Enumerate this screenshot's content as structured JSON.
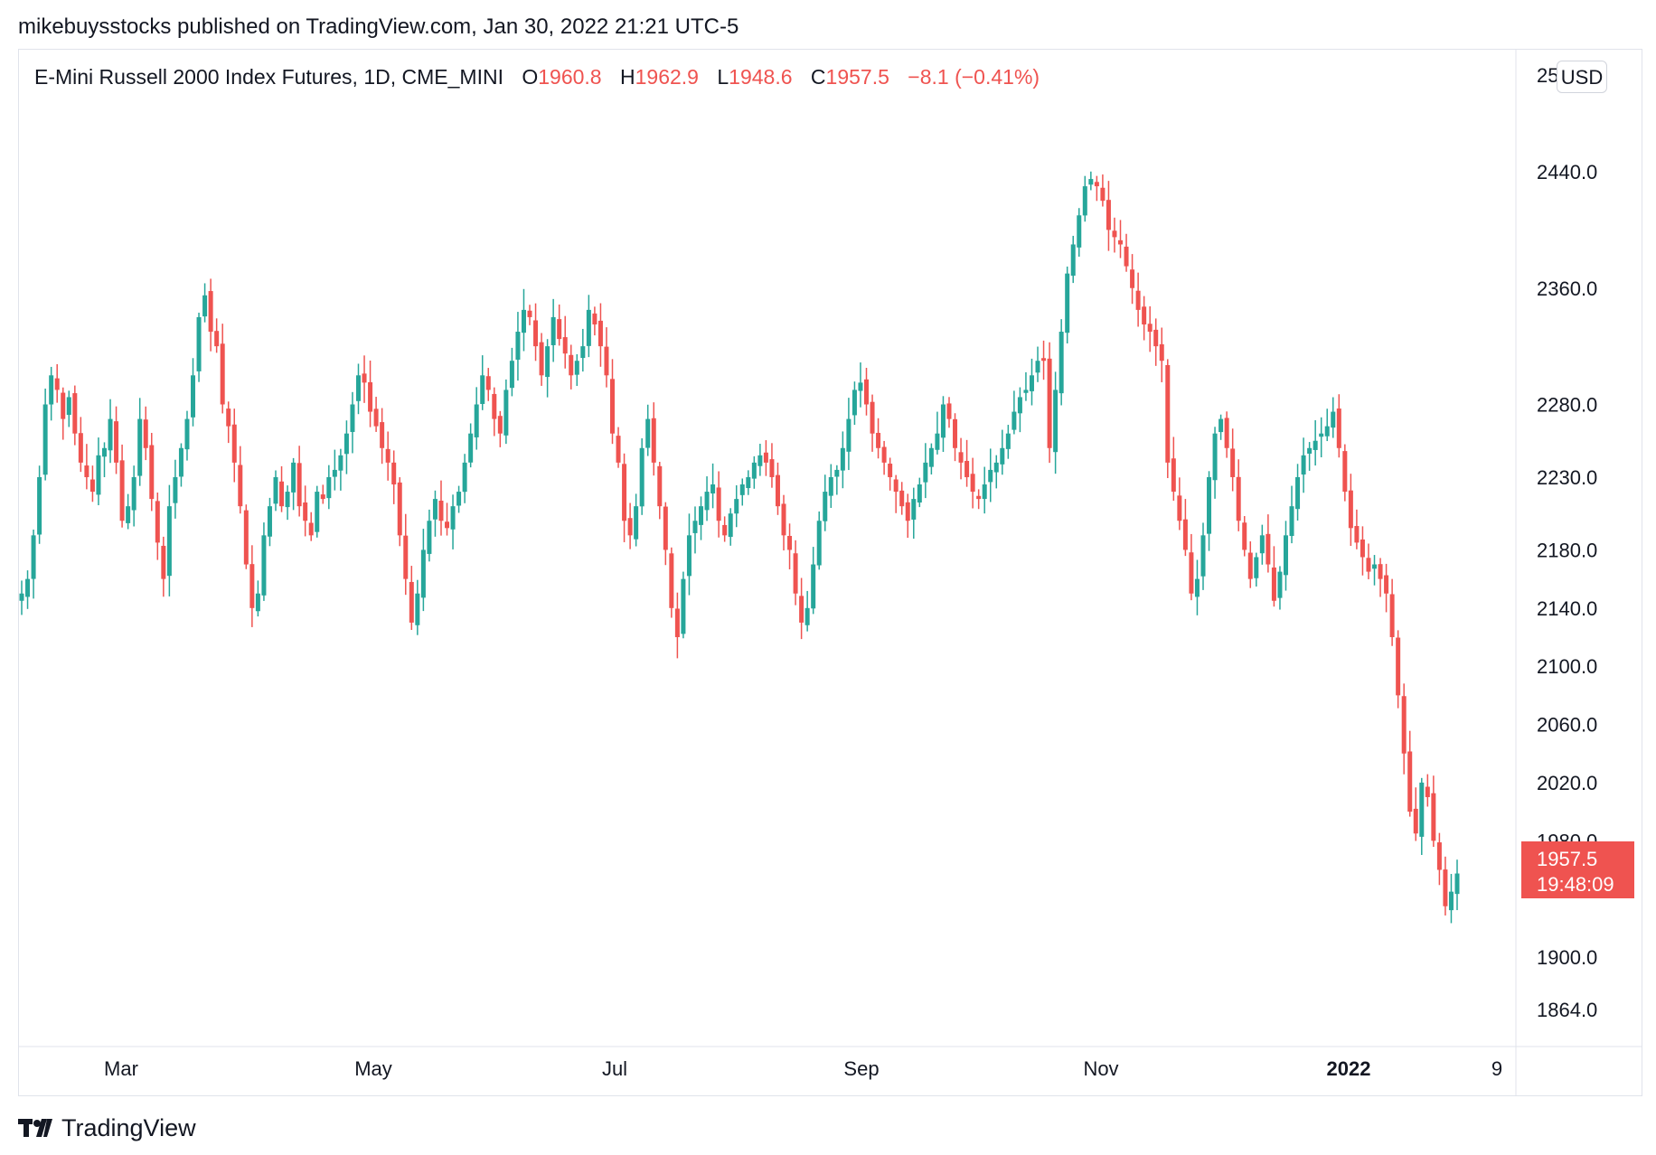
{
  "header": {
    "publisher_line": "mikebuysstocks published on TradingView.com, Jan 30, 2022 21:21 UTC-5"
  },
  "legend": {
    "symbol_title": "E-Mini Russell 2000 Index Futures, 1D, CME_MINI",
    "o_label": "O",
    "o_value": "1960.8",
    "h_label": "H",
    "h_value": "1962.9",
    "l_label": "L",
    "l_value": "1948.6",
    "c_label": "C",
    "c_value": "1957.5",
    "change": "−8.1 (−0.41%)"
  },
  "price_scale": {
    "currency_button": "USD",
    "clipped_top_label": "25"
  },
  "last_price": {
    "price": "1957.5",
    "countdown": "19:48:09"
  },
  "footer": {
    "logo_text": "TradingView"
  },
  "colors": {
    "up": "#26a69a",
    "down": "#ef5350",
    "text": "#131722",
    "border": "#e0e3eb"
  },
  "chart_data": {
    "type": "candlestick",
    "title": "E-Mini Russell 2000 Index Futures, 1D, CME_MINI",
    "y_ticks": [
      2440,
      2360,
      2280,
      2230,
      2180,
      2140,
      2100,
      2060,
      2020,
      1980,
      1900,
      1864
    ],
    "y_tick_labels": [
      "2440.0",
      "2360.0",
      "2280.0",
      "2230.0",
      "2180.0",
      "2140.0",
      "2100.0",
      "2060.0",
      "2020.0",
      "1980.0",
      "1900.0",
      "1864.0"
    ],
    "x_tick_labels": [
      {
        "label": "Mar",
        "date": "2021-03-01",
        "bold": false
      },
      {
        "label": "May",
        "date": "2021-05-03",
        "bold": false
      },
      {
        "label": "Jul",
        "date": "2021-07-01",
        "bold": false
      },
      {
        "label": "Sep",
        "date": "2021-09-01",
        "bold": false
      },
      {
        "label": "Nov",
        "date": "2021-11-01",
        "bold": false
      },
      {
        "label": "2022",
        "date": "2022-01-03",
        "bold": true
      },
      {
        "label": "9",
        "date": "2022-02-09",
        "bold": false
      }
    ],
    "ohlc_closes": [
      2150,
      2160,
      2190,
      2230,
      2280,
      2300,
      2290,
      2270,
      2285,
      2260,
      2240,
      2230,
      2220,
      2245,
      2250,
      2270,
      2240,
      2200,
      2210,
      2230,
      2270,
      2250,
      2215,
      2185,
      2160,
      2210,
      2230,
      2250,
      2270,
      2300,
      2340,
      2355,
      2330,
      2320,
      2280,
      2265,
      2240,
      2210,
      2170,
      2140,
      2150,
      2190,
      2210,
      2230,
      2210,
      2220,
      2240,
      2210,
      2200,
      2190,
      2220,
      2215,
      2230,
      2235,
      2245,
      2260,
      2280,
      2300,
      2295,
      2275,
      2265,
      2250,
      2240,
      2225,
      2190,
      2160,
      2130,
      2150,
      2180,
      2200,
      2215,
      2200,
      2195,
      2210,
      2220,
      2240,
      2260,
      2280,
      2300,
      2290,
      2270,
      2260,
      2290,
      2310,
      2330,
      2345,
      2340,
      2320,
      2300,
      2320,
      2340,
      2325,
      2315,
      2300,
      2310,
      2320,
      2345,
      2335,
      2320,
      2300,
      2260,
      2240,
      2200,
      2190,
      2210,
      2250,
      2270,
      2240,
      2210,
      2180,
      2140,
      2120,
      2160,
      2190,
      2200,
      2210,
      2220,
      2225,
      2200,
      2190,
      2205,
      2215,
      2225,
      2230,
      2240,
      2245,
      2240,
      2230,
      2210,
      2190,
      2180,
      2150,
      2130,
      2140,
      2170,
      2200,
      2220,
      2230,
      2235,
      2250,
      2270,
      2290,
      2295,
      2280,
      2260,
      2250,
      2240,
      2230,
      2220,
      2210,
      2200,
      2215,
      2225,
      2240,
      2250,
      2260,
      2280,
      2270,
      2250,
      2240,
      2230,
      2220,
      2215,
      2225,
      2235,
      2240,
      2250,
      2260,
      2275,
      2285,
      2290,
      2300,
      2310,
      2310,
      2250,
      2290,
      2330,
      2370,
      2390,
      2410,
      2430,
      2435,
      2430,
      2420,
      2400,
      2395,
      2390,
      2375,
      2360,
      2345,
      2335,
      2330,
      2320,
      2310,
      2240,
      2220,
      2200,
      2180,
      2150,
      2160,
      2190,
      2230,
      2260,
      2270,
      2250,
      2230,
      2200,
      2180,
      2160,
      2175,
      2190,
      2170,
      2145,
      2165,
      2190,
      2210,
      2230,
      2245,
      2250,
      2255,
      2260,
      2265,
      2275,
      2250,
      2220,
      2195,
      2185,
      2175,
      2165,
      2170,
      2160,
      2150,
      2120,
      2080,
      2040,
      2000,
      1985,
      2020,
      2010,
      1980,
      1960,
      1935,
      1945,
      1957.5
    ]
  }
}
